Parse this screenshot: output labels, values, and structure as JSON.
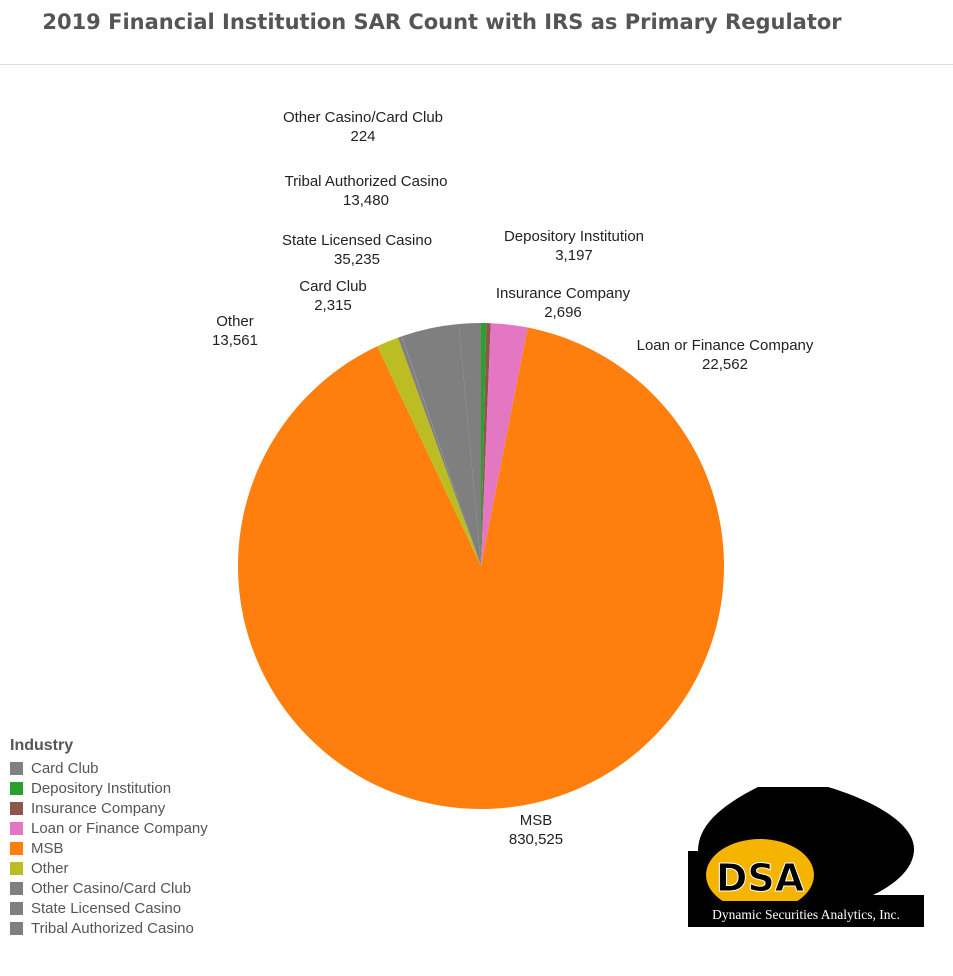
{
  "title": "2019 Financial Institution SAR Count with IRS as Primary Regulator",
  "chart_data": {
    "type": "pie",
    "title": "2019 Financial Institution SAR Count with IRS as Primary Regulator",
    "legend_title": "Industry",
    "legend_position": "bottom-left",
    "slices": [
      {
        "label": "Card Club",
        "value": 2315,
        "display": "2,315",
        "color": "#808080"
      },
      {
        "label": "Depository Institution",
        "value": 3197,
        "display": "3,197",
        "color": "#2ca02c"
      },
      {
        "label": "Insurance Company",
        "value": 2696,
        "display": "2,696",
        "color": "#8c564b"
      },
      {
        "label": "Loan or Finance Company",
        "value": 22562,
        "display": "22,562",
        "color": "#e377c2"
      },
      {
        "label": "MSB",
        "value": 830525,
        "display": "830,525",
        "color": "#ff7f0e"
      },
      {
        "label": "Other",
        "value": 13561,
        "display": "13,561",
        "color": "#bcbd22"
      },
      {
        "label": "Other Casino/Card Club",
        "value": 224,
        "display": "224",
        "color": "#7f7f7f"
      },
      {
        "label": "State Licensed Casino",
        "value": 35235,
        "display": "35,235",
        "color": "#7f7f7f"
      },
      {
        "label": "Tribal Authorized Casino",
        "value": 13480,
        "display": "13,480",
        "color": "#7f7f7f"
      }
    ]
  },
  "logo": {
    "mark": "DSA",
    "company": "Dynamic Securities Analytics, Inc."
  }
}
